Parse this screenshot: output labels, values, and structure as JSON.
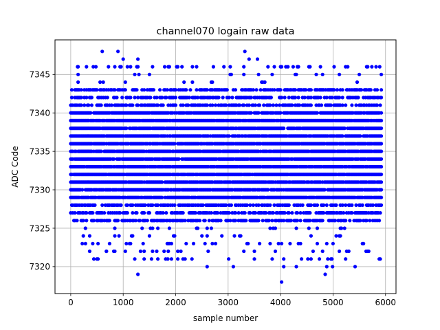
{
  "chart_data": {
    "type": "scatter",
    "title": "channel070 logain raw data",
    "xlabel": "sample number",
    "ylabel": "ADC Code",
    "xlim": [
      -300,
      6200
    ],
    "ylim": [
      7316.5,
      7349.5
    ],
    "xticks": [
      0,
      1000,
      2000,
      3000,
      4000,
      5000,
      6000
    ],
    "yticks": [
      7320,
      7325,
      7330,
      7335,
      7340,
      7345
    ],
    "grid": true,
    "legend": "none",
    "series": [
      {
        "color": "#0000ff",
        "marker": "circle",
        "x_range": [
          0,
          5920
        ],
        "sample_step": 20,
        "band": {
          "dense": [
            7326,
            7343
          ],
          "core": [
            7329,
            7340
          ],
          "outer": [
            7321,
            7346
          ]
        },
        "points": [
          [
            600,
            7348
          ],
          [
            900,
            7348
          ],
          [
            3320,
            7348
          ],
          [
            1000,
            7347
          ],
          [
            1280,
            7347
          ],
          [
            3400,
            7347
          ],
          [
            3560,
            7347
          ],
          [
            130,
            7346
          ],
          [
            430,
            7346
          ],
          [
            1790,
            7346
          ],
          [
            4000,
            7346
          ],
          [
            4240,
            7346
          ],
          [
            5660,
            7346
          ],
          [
            5890,
            7346
          ],
          [
            360,
            7322
          ],
          [
            680,
            7322
          ],
          [
            1040,
            7322
          ],
          [
            1330,
            7322
          ],
          [
            1860,
            7322
          ],
          [
            2620,
            7322
          ],
          [
            3500,
            7322
          ],
          [
            4800,
            7322
          ],
          [
            5630,
            7322
          ],
          [
            440,
            7321
          ],
          [
            1810,
            7321
          ],
          [
            1850,
            7321
          ],
          [
            2040,
            7321
          ],
          [
            2310,
            7321
          ],
          [
            3010,
            7321
          ],
          [
            3500,
            7321
          ],
          [
            4960,
            7321
          ],
          [
            1280,
            7319
          ],
          [
            4850,
            7319
          ],
          [
            2600,
            7320
          ],
          [
            3100,
            7320
          ],
          [
            4060,
            7320
          ],
          [
            4300,
            7320
          ],
          [
            4880,
            7320
          ],
          [
            4990,
            7320
          ],
          [
            5420,
            7320
          ],
          [
            4020,
            7318
          ]
        ]
      }
    ]
  }
}
